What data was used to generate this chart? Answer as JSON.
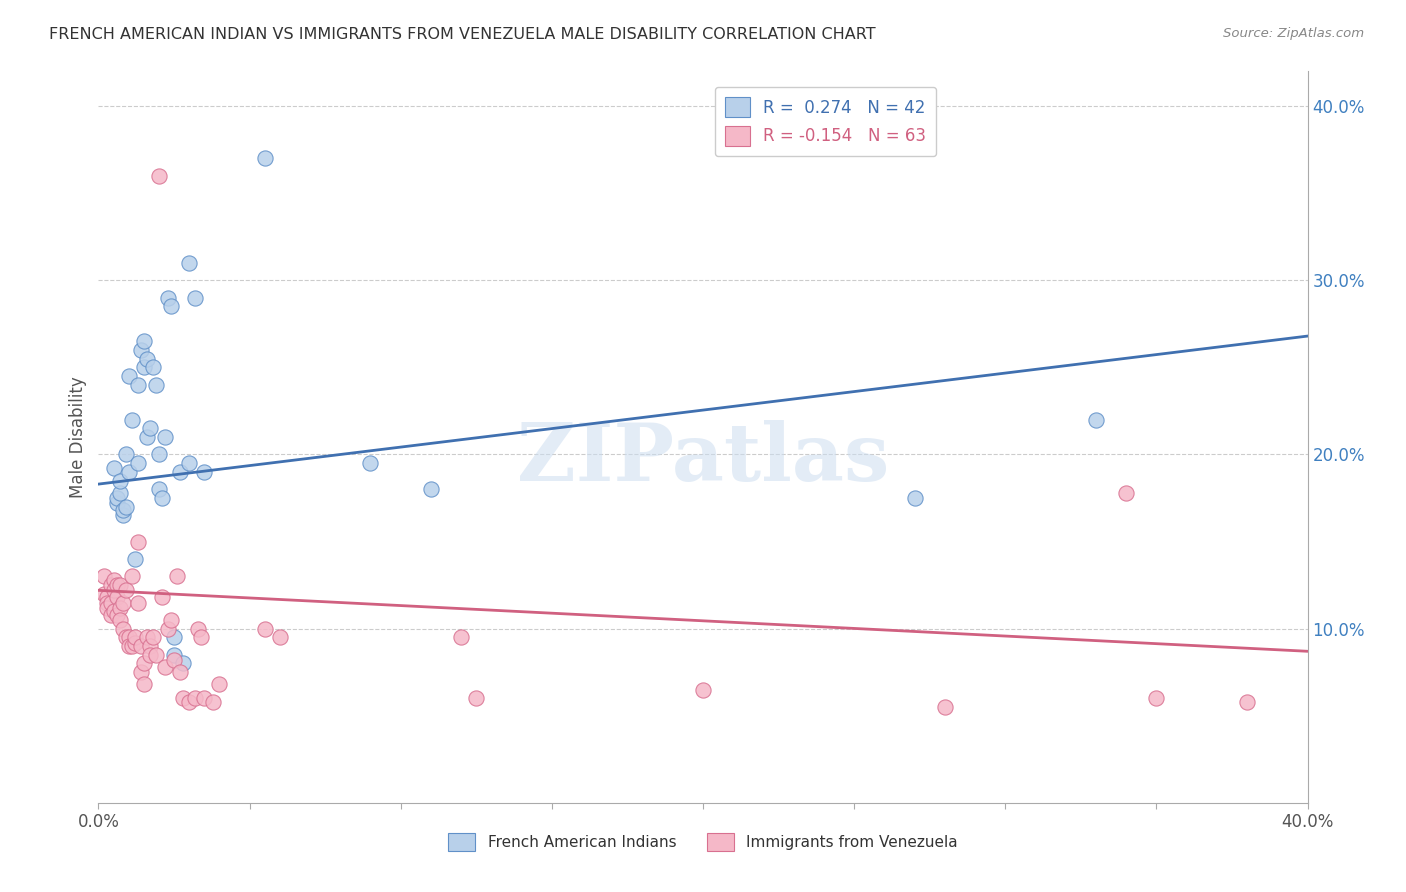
{
  "title": "FRENCH AMERICAN INDIAN VS IMMIGRANTS FROM VENEZUELA MALE DISABILITY CORRELATION CHART",
  "source": "Source: ZipAtlas.com",
  "ylabel": "Male Disability",
  "watermark": "ZIPatlas",
  "xlim": [
    0.0,
    0.4
  ],
  "ylim": [
    0.0,
    0.42
  ],
  "blue_R": 0.274,
  "blue_N": 42,
  "pink_R": -0.154,
  "pink_N": 63,
  "blue_fill": "#b8d0ea",
  "blue_edge": "#6090c8",
  "pink_fill": "#f5b8c8",
  "pink_edge": "#d87090",
  "blue_line": "#4070b0",
  "pink_line": "#d06080",
  "right_tick_color": "#4080c0",
  "blue_scatter": [
    [
      0.005,
      0.192
    ],
    [
      0.006,
      0.172
    ],
    [
      0.006,
      0.175
    ],
    [
      0.007,
      0.178
    ],
    [
      0.007,
      0.185
    ],
    [
      0.008,
      0.165
    ],
    [
      0.008,
      0.168
    ],
    [
      0.009,
      0.17
    ],
    [
      0.009,
      0.2
    ],
    [
      0.01,
      0.19
    ],
    [
      0.01,
      0.245
    ],
    [
      0.011,
      0.22
    ],
    [
      0.012,
      0.14
    ],
    [
      0.013,
      0.24
    ],
    [
      0.013,
      0.195
    ],
    [
      0.014,
      0.26
    ],
    [
      0.015,
      0.25
    ],
    [
      0.015,
      0.265
    ],
    [
      0.016,
      0.255
    ],
    [
      0.016,
      0.21
    ],
    [
      0.017,
      0.215
    ],
    [
      0.018,
      0.25
    ],
    [
      0.019,
      0.24
    ],
    [
      0.02,
      0.18
    ],
    [
      0.02,
      0.2
    ],
    [
      0.021,
      0.175
    ],
    [
      0.022,
      0.21
    ],
    [
      0.023,
      0.29
    ],
    [
      0.024,
      0.285
    ],
    [
      0.025,
      0.085
    ],
    [
      0.025,
      0.095
    ],
    [
      0.027,
      0.19
    ],
    [
      0.028,
      0.08
    ],
    [
      0.03,
      0.31
    ],
    [
      0.03,
      0.195
    ],
    [
      0.032,
      0.29
    ],
    [
      0.035,
      0.19
    ],
    [
      0.055,
      0.37
    ],
    [
      0.09,
      0.195
    ],
    [
      0.11,
      0.18
    ],
    [
      0.27,
      0.175
    ],
    [
      0.33,
      0.22
    ]
  ],
  "pink_scatter": [
    [
      0.002,
      0.13
    ],
    [
      0.002,
      0.12
    ],
    [
      0.003,
      0.118
    ],
    [
      0.003,
      0.115
    ],
    [
      0.003,
      0.112
    ],
    [
      0.004,
      0.125
    ],
    [
      0.004,
      0.108
    ],
    [
      0.004,
      0.115
    ],
    [
      0.005,
      0.11
    ],
    [
      0.005,
      0.128
    ],
    [
      0.005,
      0.122
    ],
    [
      0.006,
      0.125
    ],
    [
      0.006,
      0.118
    ],
    [
      0.006,
      0.108
    ],
    [
      0.007,
      0.112
    ],
    [
      0.007,
      0.105
    ],
    [
      0.007,
      0.125
    ],
    [
      0.008,
      0.115
    ],
    [
      0.008,
      0.1
    ],
    [
      0.009,
      0.095
    ],
    [
      0.009,
      0.122
    ],
    [
      0.01,
      0.095
    ],
    [
      0.01,
      0.09
    ],
    [
      0.011,
      0.13
    ],
    [
      0.011,
      0.09
    ],
    [
      0.012,
      0.092
    ],
    [
      0.012,
      0.095
    ],
    [
      0.013,
      0.15
    ],
    [
      0.013,
      0.115
    ],
    [
      0.014,
      0.09
    ],
    [
      0.014,
      0.075
    ],
    [
      0.015,
      0.08
    ],
    [
      0.015,
      0.068
    ],
    [
      0.016,
      0.095
    ],
    [
      0.017,
      0.09
    ],
    [
      0.017,
      0.085
    ],
    [
      0.018,
      0.095
    ],
    [
      0.019,
      0.085
    ],
    [
      0.02,
      0.36
    ],
    [
      0.021,
      0.118
    ],
    [
      0.022,
      0.078
    ],
    [
      0.023,
      0.1
    ],
    [
      0.024,
      0.105
    ],
    [
      0.025,
      0.082
    ],
    [
      0.026,
      0.13
    ],
    [
      0.027,
      0.075
    ],
    [
      0.028,
      0.06
    ],
    [
      0.03,
      0.058
    ],
    [
      0.032,
      0.06
    ],
    [
      0.033,
      0.1
    ],
    [
      0.034,
      0.095
    ],
    [
      0.035,
      0.06
    ],
    [
      0.038,
      0.058
    ],
    [
      0.04,
      0.068
    ],
    [
      0.055,
      0.1
    ],
    [
      0.06,
      0.095
    ],
    [
      0.12,
      0.095
    ],
    [
      0.125,
      0.06
    ],
    [
      0.2,
      0.065
    ],
    [
      0.28,
      0.055
    ],
    [
      0.34,
      0.178
    ],
    [
      0.35,
      0.06
    ],
    [
      0.38,
      0.058
    ]
  ],
  "blue_trendline": [
    [
      0.0,
      0.183
    ],
    [
      0.4,
      0.268
    ]
  ],
  "pink_trendline": [
    [
      0.0,
      0.122
    ],
    [
      0.4,
      0.087
    ]
  ],
  "background_color": "#ffffff",
  "grid_color": "#cccccc"
}
